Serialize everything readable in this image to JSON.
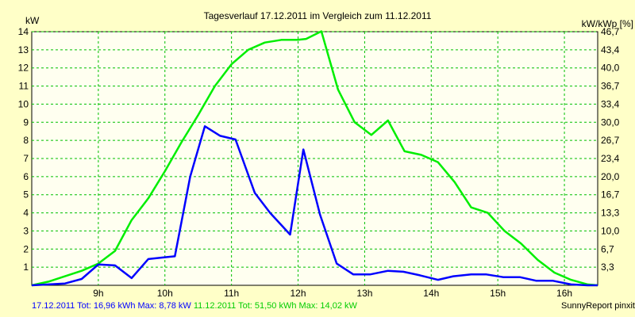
{
  "chart_data": {
    "type": "line",
    "title": "Tagesverlauf 17.12.2011 im Vergleich zum 11.12.2011",
    "ylabel_left": "kW",
    "ylabel_right": "kW/kWp [%]",
    "x_ticks": [
      "9h",
      "10h",
      "11h",
      "12h",
      "13h",
      "14h",
      "15h",
      "16h"
    ],
    "y_left_ticks": [
      "1",
      "2",
      "3",
      "4",
      "5",
      "6",
      "7",
      "8",
      "9",
      "10",
      "11",
      "12",
      "13",
      "14"
    ],
    "y_right_ticks": [
      "3,3",
      "6,7",
      "10,0",
      "13,3",
      "16,7",
      "20,0",
      "23,4",
      "26,7",
      "30,0",
      "33,4",
      "36,7",
      "40,0",
      "43,4",
      "46,7"
    ],
    "xlim": [
      8.0,
      16.5
    ],
    "ylim": [
      0,
      14
    ],
    "grid": true,
    "colors": {
      "background": "#ffffc8",
      "plot_bg": "#fffff0",
      "grid": "#00c000",
      "series1": "#0000ff",
      "series2": "#00ee00"
    },
    "series": [
      {
        "name": "17.12.2011",
        "x": [
          8.0,
          8.25,
          8.5,
          8.75,
          9.0,
          9.25,
          9.5,
          9.75,
          10.0,
          10.15,
          10.38,
          10.6,
          10.83,
          11.06,
          11.35,
          11.58,
          11.88,
          12.08,
          12.33,
          12.58,
          12.83,
          13.08,
          13.35,
          13.58,
          13.83,
          14.1,
          14.33,
          14.6,
          14.83,
          15.08,
          15.33,
          15.58,
          15.83,
          16.1,
          16.35,
          16.5
        ],
        "y": [
          0,
          0.05,
          0.1,
          0.35,
          1.15,
          1.1,
          0.4,
          1.45,
          1.55,
          1.6,
          6.0,
          8.78,
          8.25,
          8.05,
          5.1,
          4.0,
          2.8,
          7.5,
          3.9,
          1.2,
          0.6,
          0.6,
          0.8,
          0.75,
          0.55,
          0.3,
          0.5,
          0.6,
          0.6,
          0.45,
          0.45,
          0.25,
          0.25,
          0.05,
          0.0,
          0.0
        ]
      },
      {
        "name": "11.12.2011",
        "x": [
          8.0,
          8.25,
          8.5,
          8.75,
          9.0,
          9.25,
          9.5,
          9.75,
          10.0,
          10.25,
          10.5,
          10.75,
          11.0,
          11.25,
          11.5,
          11.75,
          12.0,
          12.12,
          12.35,
          12.6,
          12.85,
          13.1,
          13.35,
          13.6,
          13.85,
          14.1,
          14.35,
          14.6,
          14.85,
          15.1,
          15.35,
          15.6,
          15.85,
          16.1,
          16.35,
          16.5
        ],
        "y": [
          0,
          0.2,
          0.5,
          0.8,
          1.2,
          1.9,
          3.6,
          4.8,
          6.3,
          7.9,
          9.4,
          11.0,
          12.2,
          13.0,
          13.4,
          13.55,
          13.55,
          13.6,
          14.02,
          10.8,
          9.0,
          8.3,
          9.1,
          7.4,
          7.2,
          6.8,
          5.7,
          4.3,
          4.0,
          3.0,
          2.3,
          1.4,
          0.7,
          0.3,
          0.05,
          0.0
        ]
      }
    ]
  },
  "footer": {
    "series1_label": "17.12.2011 Tot: 16,96 kWh Max: 8,78 kW",
    "series2_label": "11.12.2011 Tot: 51,50 kWh Max: 14,02 kW",
    "credit": "SunnyReport pinxit"
  }
}
